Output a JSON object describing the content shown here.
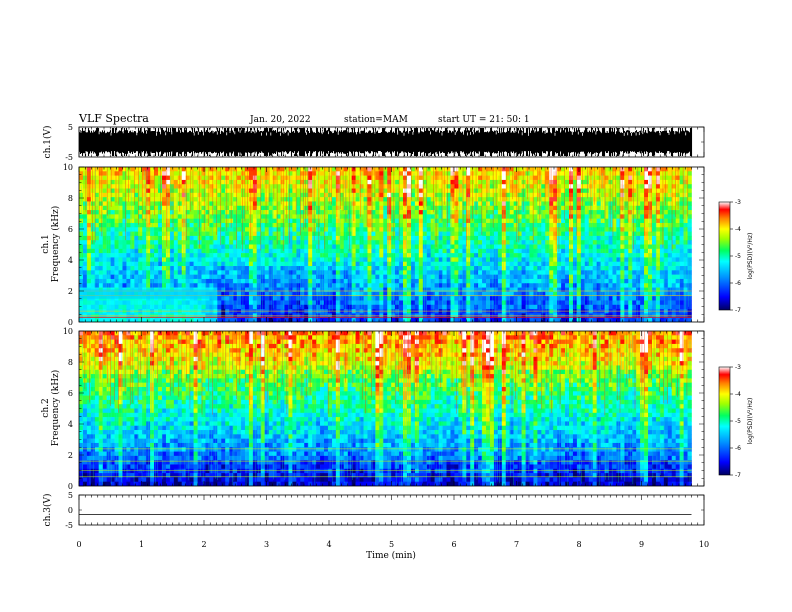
{
  "header": {
    "title": "VLF Spectra",
    "date": "Jan. 20, 2022",
    "station": "station=MAM",
    "start": "start  UT  =   21: 50: 1"
  },
  "chart_data": [
    {
      "type": "line",
      "name": "ch1-waveform",
      "ylabel": "ch.1(V)",
      "ylim": [
        -5,
        5
      ],
      "yticks": [
        "5",
        "-5"
      ],
      "xlim": [
        0,
        10
      ]
    },
    {
      "type": "heatmap",
      "name": "ch1-spectrogram",
      "ylabel_line1": "ch.1",
      "ylabel_line2": "Frequency (kHz)",
      "ylim": [
        0,
        10
      ],
      "yticks": [
        "0",
        "2",
        "4",
        "6",
        "8",
        "10"
      ],
      "xlim": [
        0,
        10
      ],
      "data_extent_min": 9.8
    },
    {
      "type": "heatmap",
      "name": "ch2-spectrogram",
      "ylabel_line1": "ch.2",
      "ylabel_line2": "Frequency (kHz)",
      "ylim": [
        0,
        10
      ],
      "yticks": [
        "0",
        "2",
        "4",
        "6",
        "8",
        "10"
      ],
      "xlim": [
        0,
        10
      ],
      "data_extent_min": 9.8
    },
    {
      "type": "line",
      "name": "ch3-waveform",
      "ylabel": "ch.3(V)",
      "ylim": [
        -5,
        5
      ],
      "yticks": [
        "5",
        "0",
        "-5"
      ],
      "xlim": [
        0,
        10
      ],
      "xlabel": "Time  (min)",
      "xticks": [
        "0",
        "1",
        "2",
        "3",
        "4",
        "5",
        "6",
        "7",
        "8",
        "9",
        "10"
      ],
      "constant_value": -1.5
    }
  ],
  "colorbar": {
    "label": "log(PSD)(V²/Hz)",
    "ticks": [
      "-3",
      "-4",
      "-5",
      "-6",
      "-7"
    ],
    "range": [
      -7,
      -3
    ],
    "colors": [
      "#000080",
      "#0000ff",
      "#0080ff",
      "#00ffff",
      "#00ff80",
      "#80ff00",
      "#ffff00",
      "#ff8000",
      "#ff0000",
      "#ffffff"
    ]
  }
}
